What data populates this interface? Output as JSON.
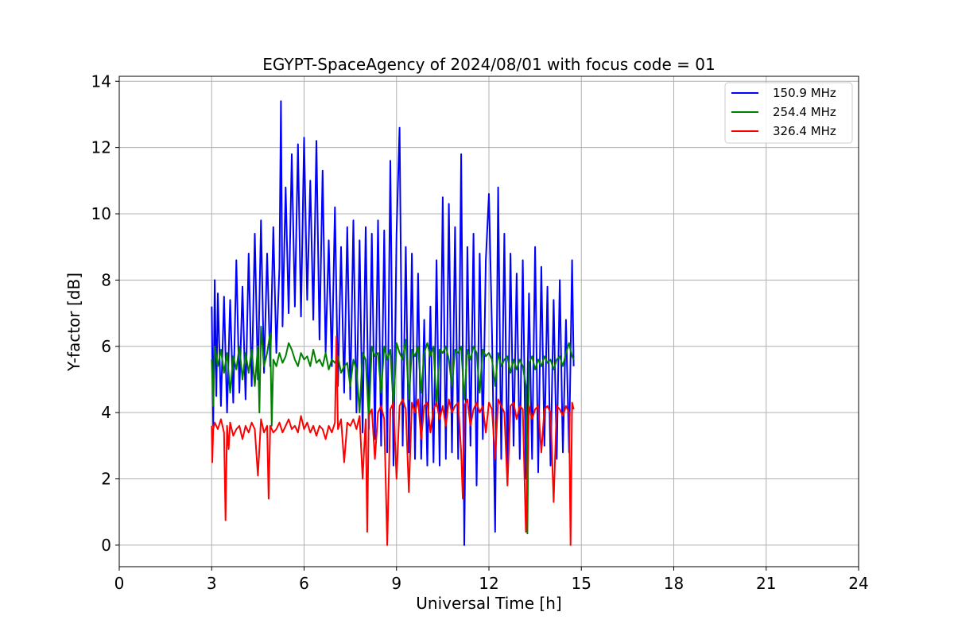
{
  "chart_data": {
    "type": "line",
    "title": "EGYPT-SpaceAgency of 2024/08/01 with focus code = 01",
    "xlabel": "Universal Time [h]",
    "ylabel": "Y-factor [dB]",
    "xlim": [
      0,
      24
    ],
    "ylim": [
      -0.65,
      14.15
    ],
    "x_ticks": [
      0,
      3,
      6,
      9,
      12,
      15,
      18,
      21,
      24
    ],
    "y_ticks": [
      0,
      2,
      4,
      6,
      8,
      10,
      12,
      14
    ],
    "grid": true,
    "legend_position": "top-right",
    "series": [
      {
        "name": "150.9 MHz",
        "color": "#0000ff",
        "x": [
          3.0,
          3.05,
          3.1,
          3.15,
          3.2,
          3.3,
          3.4,
          3.5,
          3.6,
          3.7,
          3.8,
          3.9,
          4.0,
          4.1,
          4.2,
          4.3,
          4.4,
          4.5,
          4.6,
          4.7,
          4.8,
          4.9,
          5.0,
          5.1,
          5.2,
          5.25,
          5.3,
          5.4,
          5.5,
          5.6,
          5.7,
          5.8,
          5.9,
          6.0,
          6.1,
          6.2,
          6.3,
          6.4,
          6.5,
          6.6,
          6.7,
          6.8,
          6.9,
          7.0,
          7.1,
          7.2,
          7.3,
          7.4,
          7.5,
          7.6,
          7.7,
          7.8,
          7.9,
          8.0,
          8.1,
          8.2,
          8.3,
          8.4,
          8.5,
          8.6,
          8.7,
          8.8,
          8.9,
          9.0,
          9.1,
          9.2,
          9.3,
          9.4,
          9.5,
          9.6,
          9.7,
          9.8,
          9.9,
          10.0,
          10.1,
          10.2,
          10.3,
          10.4,
          10.5,
          10.6,
          10.7,
          10.8,
          10.9,
          11.0,
          11.1,
          11.2,
          11.3,
          11.4,
          11.5,
          11.6,
          11.7,
          11.8,
          11.9,
          12.0,
          12.1,
          12.2,
          12.3,
          12.4,
          12.5,
          12.6,
          12.7,
          12.8,
          12.9,
          13.0,
          13.1,
          13.2,
          13.3,
          13.4,
          13.5,
          13.6,
          13.7,
          13.8,
          13.9,
          14.0,
          14.1,
          14.2,
          14.3,
          14.4,
          14.5,
          14.6,
          14.7,
          14.75
        ],
        "values": [
          7.2,
          3.6,
          8.0,
          4.5,
          7.6,
          4.2,
          7.5,
          4.0,
          7.4,
          4.3,
          8.6,
          4.6,
          7.8,
          4.4,
          8.8,
          4.8,
          9.4,
          5.0,
          9.8,
          5.2,
          8.8,
          5.4,
          9.6,
          5.8,
          8.4,
          13.4,
          6.6,
          10.8,
          7.0,
          11.8,
          7.2,
          12.1,
          6.9,
          12.3,
          7.4,
          11.0,
          6.8,
          12.2,
          6.2,
          11.3,
          5.8,
          9.2,
          5.4,
          10.2,
          4.8,
          9.0,
          4.6,
          9.6,
          4.4,
          9.8,
          4.0,
          9.2,
          3.4,
          9.6,
          3.5,
          9.4,
          3.2,
          9.8,
          3.0,
          9.5,
          2.8,
          11.6,
          2.4,
          9.4,
          12.6,
          3.0,
          9.0,
          2.8,
          8.8,
          2.6,
          8.2,
          2.6,
          6.8,
          2.4,
          7.2,
          2.5,
          8.6,
          2.4,
          10.5,
          2.6,
          10.3,
          2.8,
          9.6,
          2.6,
          11.8,
          0.0,
          9.0,
          3.0,
          9.4,
          1.8,
          8.8,
          3.2,
          8.6,
          10.6,
          6.4,
          0.4,
          10.8,
          2.6,
          9.4,
          2.2,
          8.8,
          3.0,
          8.2,
          2.6,
          8.6,
          2.0,
          7.6,
          2.6,
          9.0,
          2.2,
          8.4,
          3.0,
          7.8,
          2.4,
          7.4,
          2.6,
          8.0,
          2.8,
          6.8,
          2.8,
          8.6,
          5.4
        ]
      },
      {
        "name": "254.4 MHz",
        "color": "#008000",
        "x": [
          3.0,
          3.05,
          3.1,
          3.2,
          3.3,
          3.4,
          3.5,
          3.6,
          3.7,
          3.8,
          3.9,
          4.0,
          4.1,
          4.2,
          4.3,
          4.4,
          4.5,
          4.55,
          4.6,
          4.7,
          4.8,
          4.9,
          4.95,
          5.0,
          5.1,
          5.2,
          5.3,
          5.4,
          5.5,
          5.6,
          5.7,
          5.8,
          5.9,
          6.0,
          6.1,
          6.2,
          6.3,
          6.4,
          6.5,
          6.6,
          6.7,
          6.8,
          6.9,
          7.0,
          7.1,
          7.2,
          7.3,
          7.4,
          7.5,
          7.6,
          7.7,
          7.8,
          7.9,
          8.0,
          8.1,
          8.2,
          8.3,
          8.4,
          8.5,
          8.6,
          8.7,
          8.8,
          8.9,
          9.0,
          9.1,
          9.2,
          9.3,
          9.4,
          9.5,
          9.6,
          9.7,
          9.8,
          9.9,
          10.0,
          10.1,
          10.2,
          10.3,
          10.4,
          10.5,
          10.6,
          10.7,
          10.8,
          10.9,
          11.0,
          11.1,
          11.2,
          11.3,
          11.4,
          11.5,
          11.6,
          11.7,
          11.8,
          11.9,
          12.0,
          12.1,
          12.2,
          12.3,
          12.4,
          12.5,
          12.6,
          12.7,
          12.8,
          12.9,
          13.0,
          13.1,
          13.2,
          13.25,
          13.3,
          13.4,
          13.5,
          13.6,
          13.7,
          13.8,
          13.9,
          14.0,
          14.1,
          14.2,
          14.3,
          14.4,
          14.5,
          14.6,
          14.7,
          14.75
        ],
        "values": [
          5.6,
          4.2,
          6.0,
          5.4,
          5.9,
          5.2,
          5.8,
          4.6,
          5.7,
          5.3,
          6.0,
          5.0,
          5.8,
          5.2,
          5.9,
          4.8,
          6.0,
          4.0,
          6.6,
          5.4,
          5.8,
          6.4,
          3.6,
          5.6,
          5.4,
          5.8,
          5.5,
          5.7,
          6.1,
          5.9,
          5.6,
          5.4,
          5.8,
          5.6,
          5.7,
          5.4,
          5.9,
          5.5,
          5.6,
          5.4,
          5.8,
          5.3,
          5.6,
          5.5,
          5.7,
          5.2,
          5.4,
          5.5,
          4.8,
          5.6,
          5.3,
          4.0,
          5.8,
          5.6,
          3.8,
          6.0,
          5.7,
          5.8,
          4.6,
          6.0,
          5.6,
          5.9,
          4.2,
          6.1,
          5.8,
          5.6,
          6.2,
          4.4,
          5.9,
          5.7,
          6.0,
          4.6,
          5.8,
          6.1,
          5.7,
          6.0,
          4.2,
          5.9,
          5.8,
          6.0,
          5.6,
          4.8,
          5.9,
          5.8,
          6.0,
          4.4,
          5.9,
          5.6,
          6.0,
          5.8,
          4.6,
          5.9,
          5.7,
          5.8,
          5.6,
          4.8,
          5.8,
          5.4,
          5.6,
          5.7,
          5.2,
          5.6,
          5.3,
          5.6,
          5.4,
          4.8,
          0.35,
          5.5,
          5.7,
          5.3,
          5.6,
          5.4,
          5.7,
          5.5,
          5.6,
          5.3,
          5.6,
          5.7,
          5.4,
          5.8,
          6.1,
          5.7,
          5.6
        ]
      },
      {
        "name": "326.4 MHz",
        "color": "#ff0000",
        "x": [
          3.0,
          3.02,
          3.05,
          3.1,
          3.2,
          3.3,
          3.4,
          3.45,
          3.5,
          3.55,
          3.6,
          3.7,
          3.8,
          3.9,
          4.0,
          4.1,
          4.2,
          4.3,
          4.4,
          4.5,
          4.6,
          4.7,
          4.8,
          4.85,
          4.9,
          5.0,
          5.1,
          5.2,
          5.3,
          5.4,
          5.5,
          5.6,
          5.7,
          5.8,
          5.9,
          6.0,
          6.1,
          6.2,
          6.3,
          6.4,
          6.5,
          6.6,
          6.7,
          6.8,
          6.9,
          7.0,
          7.05,
          7.1,
          7.2,
          7.3,
          7.4,
          7.5,
          7.6,
          7.7,
          7.8,
          7.9,
          8.0,
          8.05,
          8.1,
          8.2,
          8.3,
          8.4,
          8.5,
          8.6,
          8.7,
          8.8,
          8.9,
          9.0,
          9.1,
          9.2,
          9.3,
          9.4,
          9.5,
          9.6,
          9.7,
          9.8,
          9.9,
          10.0,
          10.1,
          10.2,
          10.3,
          10.4,
          10.5,
          10.6,
          10.7,
          10.8,
          10.9,
          11.0,
          11.1,
          11.15,
          11.2,
          11.3,
          11.4,
          11.5,
          11.6,
          11.7,
          11.8,
          11.9,
          12.0,
          12.1,
          12.2,
          12.3,
          12.4,
          12.5,
          12.6,
          12.7,
          12.8,
          12.9,
          13.0,
          13.1,
          13.2,
          13.3,
          13.4,
          13.5,
          13.6,
          13.7,
          13.8,
          13.9,
          14.0,
          14.1,
          14.2,
          14.3,
          14.4,
          14.5,
          14.6,
          14.65,
          14.7,
          14.75
        ],
        "values": [
          3.6,
          2.5,
          3.5,
          3.7,
          3.5,
          3.8,
          3.4,
          0.75,
          3.6,
          2.9,
          3.7,
          3.3,
          3.5,
          3.6,
          3.2,
          3.6,
          3.4,
          3.7,
          3.5,
          2.1,
          3.8,
          3.4,
          3.6,
          1.4,
          3.6,
          3.4,
          3.5,
          3.7,
          3.4,
          3.6,
          3.8,
          3.5,
          3.6,
          3.4,
          3.9,
          3.5,
          3.7,
          3.4,
          3.6,
          3.3,
          3.6,
          3.5,
          3.2,
          3.6,
          3.4,
          3.7,
          6.3,
          3.5,
          3.8,
          2.5,
          3.7,
          3.6,
          3.8,
          3.5,
          3.9,
          2.0,
          3.8,
          0.4,
          3.9,
          4.1,
          2.6,
          4.0,
          4.2,
          3.8,
          0.0,
          4.1,
          4.3,
          2.0,
          4.2,
          4.4,
          4.1,
          1.6,
          4.3,
          4.0,
          4.4,
          3.2,
          4.2,
          4.3,
          3.4,
          4.1,
          4.3,
          3.8,
          4.2,
          3.6,
          4.4,
          4.0,
          4.2,
          4.3,
          2.8,
          1.4,
          4.2,
          4.4,
          3.6,
          4.1,
          4.3,
          4.0,
          4.2,
          3.4,
          4.3,
          4.1,
          2.6,
          4.4,
          4.2,
          4.0,
          1.8,
          4.2,
          4.3,
          3.8,
          4.2,
          4.1,
          0.4,
          4.2,
          3.8,
          4.1,
          4.2,
          2.8,
          4.1,
          4.2,
          4.0,
          1.3,
          4.2,
          4.1,
          3.9,
          4.2,
          4.0,
          0.0,
          4.3,
          4.1
        ]
      }
    ]
  }
}
